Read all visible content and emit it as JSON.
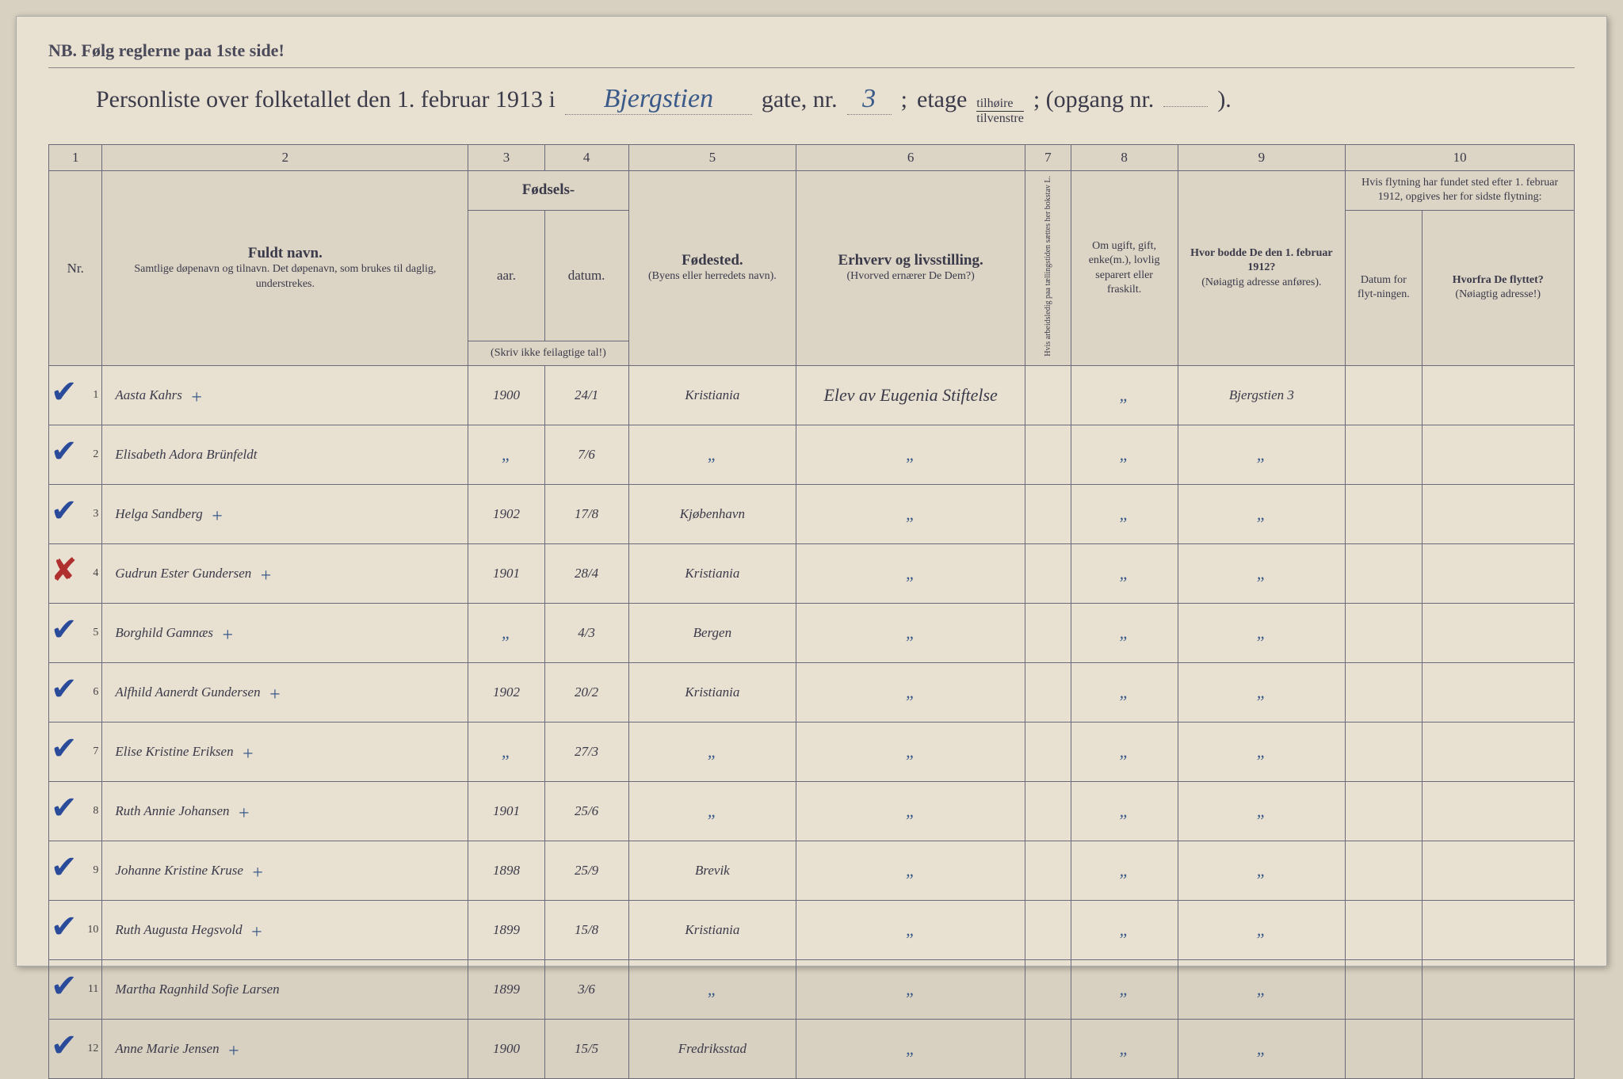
{
  "header": {
    "nb": "NB.  Følg reglerne paa 1ste side!",
    "title_prefix": "Personliste over folketallet den 1. februar 1913 i",
    "street": "Bjergstien",
    "gate_label": "gate, nr.",
    "gate_nr": "3",
    "semicolon": ";",
    "etage_label": "etage",
    "frac_top": "tilhøire",
    "frac_bot": "tilvenstre",
    "opgang_label": "; (opgang nr.",
    "opgang_nr": "",
    "close": ")."
  },
  "columns": {
    "c1": "1",
    "c2": "2",
    "c3": "3",
    "c4": "4",
    "c5": "5",
    "c6": "6",
    "c7": "7",
    "c8": "8",
    "c9": "9",
    "c10": "10",
    "nr": "Nr.",
    "name_main": "Fuldt navn.",
    "name_sub": "Samtlige døpenavn og tilnavn. Det døpenavn, som brukes til daglig, understrekes.",
    "birth_main": "Fødsels-",
    "birth_yr": "aar.",
    "birth_dt": "datum.",
    "birth_note": "(Skriv ikke feilagtige tal!)",
    "birthplace_main": "Fødested.",
    "birthplace_sub": "(Byens eller herredets navn).",
    "occ_main": "Erhverv og livsstilling.",
    "occ_sub": "(Hvorved ernærer De Dem?)",
    "col7": "Hvis arbeidsledig paa tællingstiden sættes her bokstav L.",
    "col8": "Om ugift, gift, enke(m.), lovlig separert eller fraskilt.",
    "col9_main": "Hvor bodde De den 1. februar 1912?",
    "col9_sub": "(Nøiagtig adresse anføres).",
    "col10_main": "Hvis flytning har fundet sted efter 1. februar 1912, opgives her for sidste flytning:",
    "col10a": "Datum for flyt-ningen.",
    "col10b_main": "Hvorfra De flyttet?",
    "col10b_sub": "(Nøiagtig adresse!)"
  },
  "rows": [
    {
      "nr": "1",
      "mark": "✔",
      "name": "Aasta Kahrs",
      "plus": "+",
      "yr": "1900",
      "dt": "24/1",
      "bp": "Kristiania",
      "occ": "Elev av Eugenia Stiftelse",
      "c8": "\"",
      "c9": "Bjergstien 3"
    },
    {
      "nr": "2",
      "mark": "✔",
      "name": "Elisabeth Adora Brünfeldt",
      "plus": "",
      "yr": "\"",
      "dt": "7/6",
      "bp": "\"",
      "occ": "\"",
      "c8": "\"",
      "c9": "\""
    },
    {
      "nr": "3",
      "mark": "✔",
      "name": "Helga Sandberg",
      "plus": "+",
      "yr": "1902",
      "dt": "17/8",
      "bp": "Kjøbenhavn",
      "occ": "\"",
      "c8": "\"",
      "c9": "\""
    },
    {
      "nr": "4",
      "mark": "✘",
      "name": "Gudrun Ester Gundersen",
      "plus": "+",
      "yr": "1901",
      "dt": "28/4",
      "bp": "Kristiania",
      "occ": "\"",
      "c8": "\"",
      "c9": "\""
    },
    {
      "nr": "5",
      "mark": "✔",
      "name": "Borghild Gamnæs",
      "plus": "+",
      "yr": "\"",
      "dt": "4/3",
      "bp": "Bergen",
      "occ": "\"",
      "c8": "\"",
      "c9": "\""
    },
    {
      "nr": "6",
      "mark": "✔",
      "name": "Alfhild Aanerdt Gundersen",
      "plus": "+",
      "yr": "1902",
      "dt": "20/2",
      "bp": "Kristiania",
      "occ": "\"",
      "c8": "\"",
      "c9": "\""
    },
    {
      "nr": "7",
      "mark": "✔",
      "name": "Elise Kristine Eriksen",
      "plus": "+",
      "yr": "\"",
      "dt": "27/3",
      "bp": "\"",
      "occ": "\"",
      "c8": "\"",
      "c9": "\""
    },
    {
      "nr": "8",
      "mark": "✔",
      "name": "Ruth Annie Johansen",
      "plus": "+",
      "yr": "1901",
      "dt": "25/6",
      "bp": "\"",
      "occ": "\"",
      "c8": "\"",
      "c9": "\""
    },
    {
      "nr": "9",
      "mark": "✔",
      "name": "Johanne Kristine Kruse",
      "plus": "+",
      "yr": "1898",
      "dt": "25/9",
      "bp": "Brevik",
      "occ": "\"",
      "c8": "\"",
      "c9": "\""
    },
    {
      "nr": "10",
      "mark": "✔",
      "name": "Ruth Augusta Hegsvold",
      "plus": "+",
      "yr": "1899",
      "dt": "15/8",
      "bp": "Kristiania",
      "occ": "\"",
      "c8": "\"",
      "c9": "\""
    },
    {
      "nr": "11",
      "mark": "✔",
      "name": "Martha Ragnhild Sofie Larsen",
      "plus": "",
      "yr": "1899",
      "dt": "3/6",
      "bp": "\"",
      "occ": "\"",
      "c8": "\"",
      "c9": "\""
    },
    {
      "nr": "12",
      "mark": "✔",
      "name": "Anne Marie Jensen",
      "plus": "+",
      "yr": "1900",
      "dt": "15/5",
      "bp": "Fredriksstad",
      "occ": "\"",
      "c8": "\"",
      "c9": "\""
    }
  ],
  "style": {
    "bg": "#e8e0d0",
    "ink_printed": "#3a3a4a",
    "ink_hand": "#3a5a8a",
    "border": "#6a6a7a"
  }
}
